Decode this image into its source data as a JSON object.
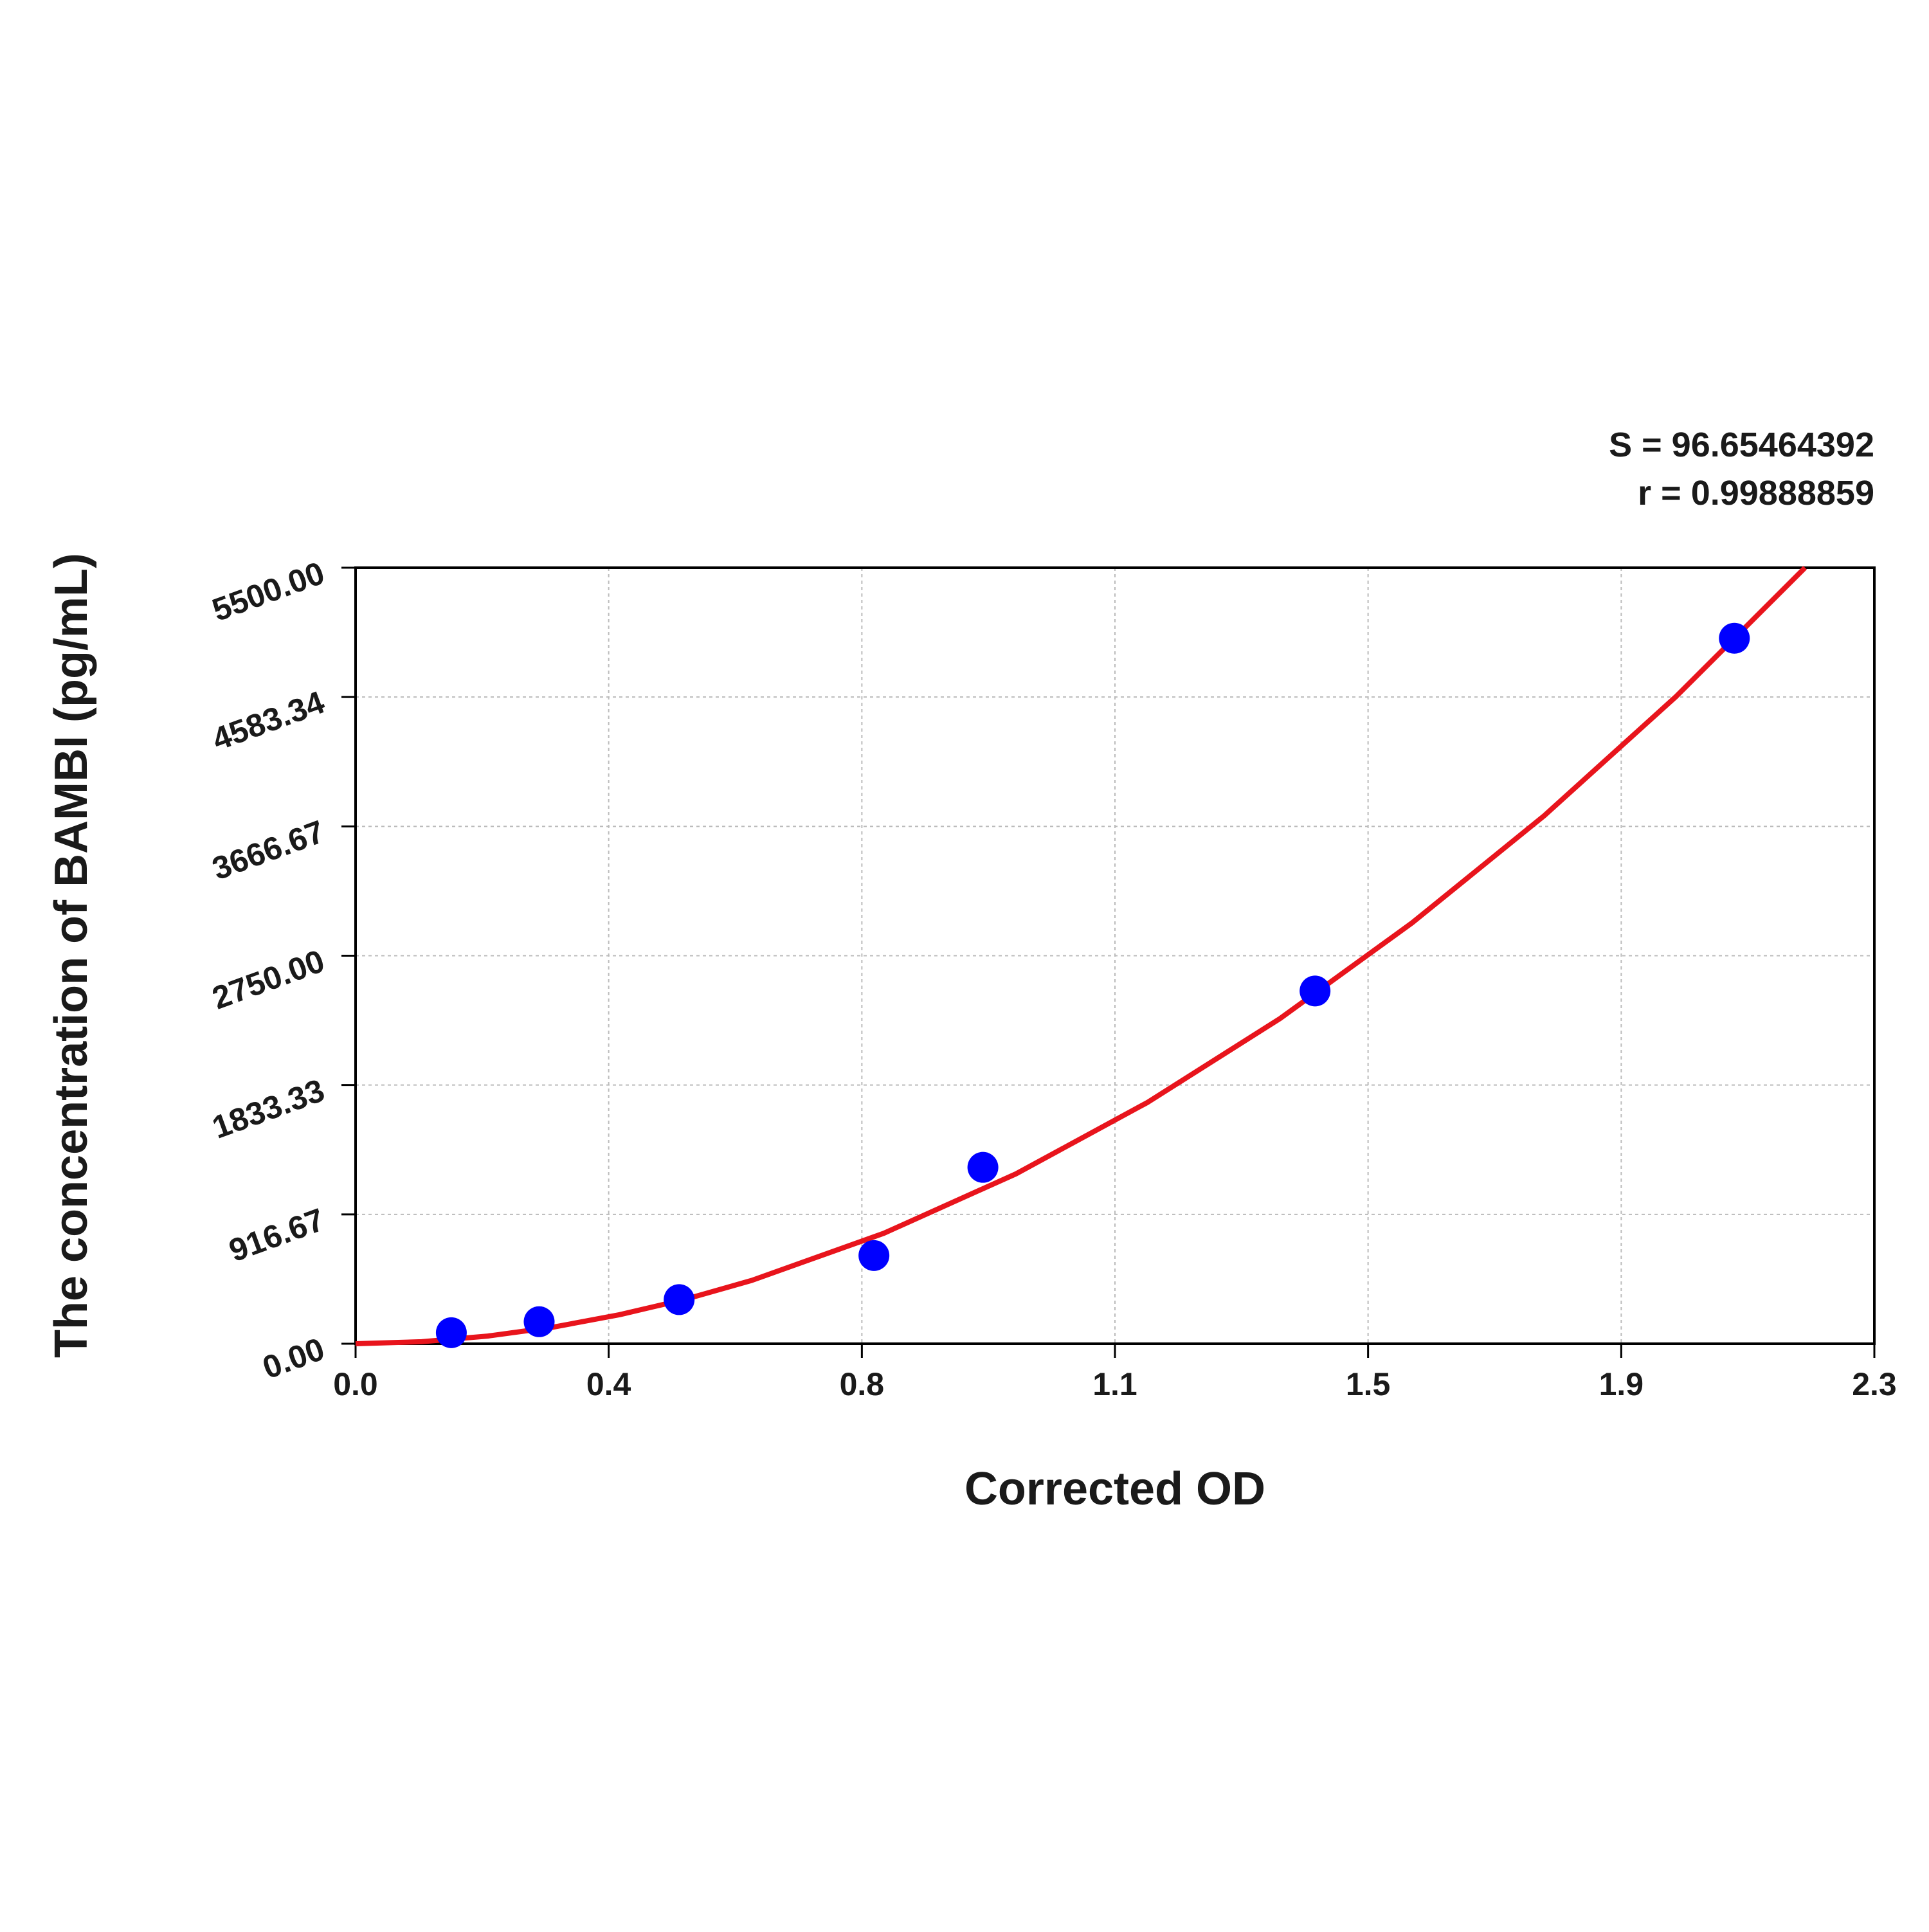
{
  "chart_data": {
    "type": "scatter",
    "annotations": [
      "S = 96.65464392",
      "r = 0.99888859"
    ],
    "xlabel": "Corrected OD",
    "ylabel": "The concentration of BAMBI (pg/mL)",
    "xlim": [
      0,
      2.3
    ],
    "ylim": [
      0,
      5500
    ],
    "xticks": [
      {
        "value": 0,
        "label": "0.0"
      },
      {
        "value": 0.3833,
        "label": "0.4"
      },
      {
        "value": 0.7667,
        "label": "0.8"
      },
      {
        "value": 1.15,
        "label": "1.1"
      },
      {
        "value": 1.5333,
        "label": "1.5"
      },
      {
        "value": 1.9167,
        "label": "1.9"
      },
      {
        "value": 2.3,
        "label": "2.3"
      }
    ],
    "yticks": [
      {
        "value": 0,
        "label": "0.00"
      },
      {
        "value": 916.67,
        "label": "916.67"
      },
      {
        "value": 1833.33,
        "label": "1833.33"
      },
      {
        "value": 2750,
        "label": "2750.00"
      },
      {
        "value": 3666.67,
        "label": "3666.67"
      },
      {
        "value": 4583.34,
        "label": "4583.34"
      },
      {
        "value": 5500,
        "label": "5500.00"
      }
    ],
    "grid": true,
    "points": {
      "color": "#0000ff",
      "x": [
        0.145,
        0.278,
        0.49,
        0.785,
        0.95,
        1.453,
        2.088
      ],
      "values": [
        78,
        156,
        312.5,
        625,
        1250,
        2500,
        5000
      ]
    },
    "curve": {
      "color": "#e8141c",
      "x": [
        0,
        0.1,
        0.2,
        0.3,
        0.4,
        0.5,
        0.6,
        0.8,
        1.0,
        1.2,
        1.4,
        1.6,
        1.8,
        2.0,
        2.195
      ],
      "values": [
        0,
        14,
        54,
        118,
        206,
        316,
        449,
        783,
        1204,
        1712,
        2305,
        2983,
        3742,
        4588,
        5500
      ]
    }
  }
}
